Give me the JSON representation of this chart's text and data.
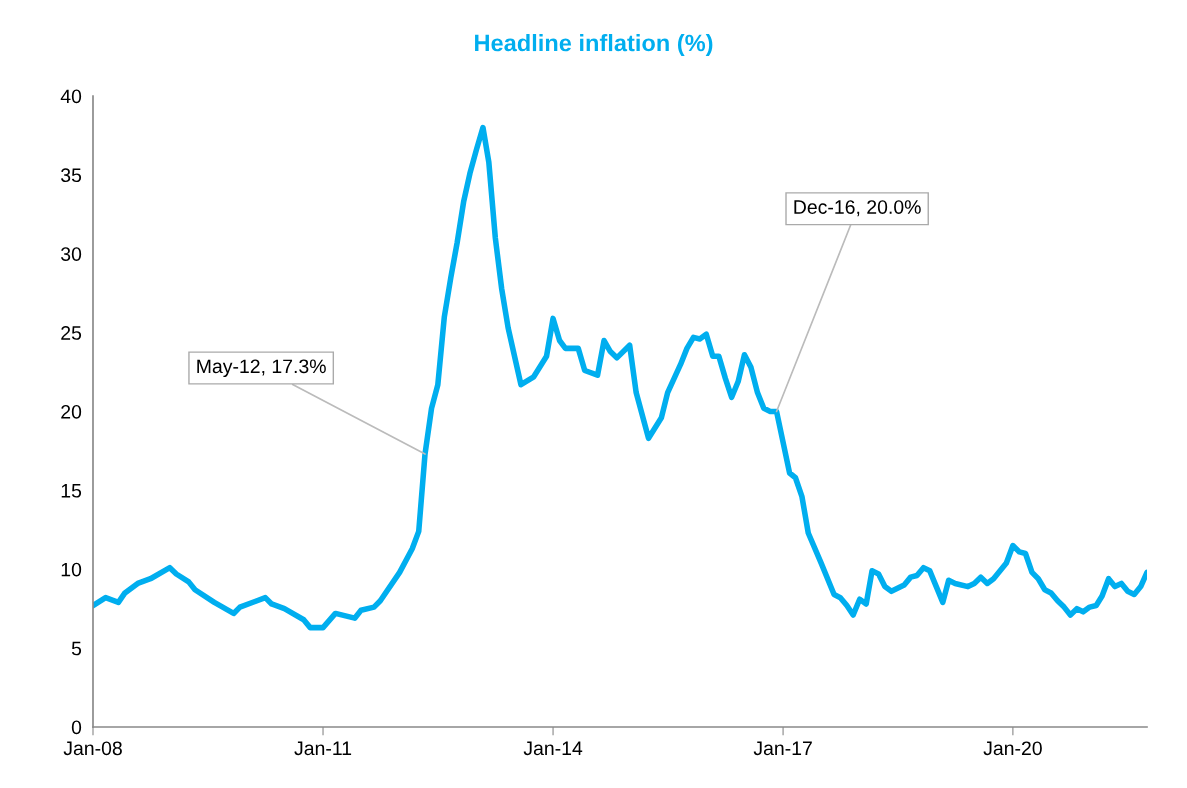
{
  "chart_data": {
    "type": "line",
    "title": "Headline inflation (%)",
    "x": [
      "2008-01",
      "2008-03",
      "2008-05",
      "2008-06",
      "2008-08",
      "2008-10",
      "2009-01",
      "2009-02",
      "2009-04",
      "2009-05",
      "2009-08",
      "2009-11",
      "2009-12",
      "2010-04",
      "2010-05",
      "2010-07",
      "2010-10",
      "2010-11",
      "2011-01",
      "2011-03",
      "2011-06",
      "2011-07",
      "2011-09",
      "2011-10",
      "2012-01",
      "2012-03",
      "2012-04",
      "2012-05",
      "2012-06",
      "2012-07",
      "2012-08",
      "2012-09",
      "2012-10",
      "2012-11",
      "2012-12",
      "2013-01",
      "2013-02",
      "2013-03",
      "2013-04",
      "2013-05",
      "2013-06",
      "2013-08",
      "2013-10",
      "2013-12",
      "2014-01",
      "2014-02",
      "2014-03",
      "2014-05",
      "2014-06",
      "2014-08",
      "2014-09",
      "2014-10",
      "2014-11",
      "2015-01",
      "2015-02",
      "2015-04",
      "2015-06",
      "2015-07",
      "2015-09",
      "2015-10",
      "2015-11",
      "2015-12",
      "2016-01",
      "2016-02",
      "2016-03",
      "2016-04",
      "2016-05",
      "2016-06",
      "2016-07",
      "2016-08",
      "2016-09",
      "2016-10",
      "2016-11",
      "2016-12",
      "2017-02",
      "2017-03",
      "2017-04",
      "2017-05",
      "2017-07",
      "2017-09",
      "2017-10",
      "2017-11",
      "2017-12",
      "2018-01",
      "2018-02",
      "2018-03",
      "2018-04",
      "2018-05",
      "2018-06",
      "2018-08",
      "2018-09",
      "2018-10",
      "2018-11",
      "2018-12",
      "2019-01",
      "2019-02",
      "2019-03",
      "2019-04",
      "2019-06",
      "2019-07",
      "2019-08",
      "2019-09",
      "2019-10",
      "2019-11",
      "2019-12",
      "2020-01",
      "2020-02",
      "2020-03",
      "2020-04",
      "2020-05",
      "2020-06",
      "2020-07",
      "2020-08",
      "2020-09",
      "2020-10",
      "2020-11",
      "2020-12",
      "2021-01",
      "2021-02",
      "2021-03",
      "2021-04",
      "2021-05",
      "2021-06",
      "2021-07",
      "2021-08",
      "2021-09",
      "2021-10"
    ],
    "series": [
      {
        "color": "#00aeef",
        "values": [
          7.7,
          8.2,
          7.9,
          8.5,
          9.1,
          9.4,
          10.1,
          9.7,
          9.2,
          8.7,
          7.9,
          7.2,
          7.6,
          8.2,
          7.8,
          7.5,
          6.8,
          6.3,
          6.3,
          7.2,
          6.9,
          7.4,
          7.6,
          8.0,
          9.8,
          11.3,
          12.4,
          17.3,
          20.2,
          21.7,
          26.0,
          28.5,
          30.7,
          33.3,
          35.1,
          36.6,
          38.0,
          35.8,
          31.0,
          27.8,
          25.3,
          21.7,
          22.2,
          23.5,
          25.9,
          24.5,
          24.0,
          24.0,
          22.6,
          22.3,
          24.5,
          23.8,
          23.4,
          24.2,
          21.2,
          18.3,
          19.6,
          21.2,
          23.0,
          24.0,
          24.7,
          24.6,
          24.9,
          23.5,
          23.5,
          22.1,
          20.9,
          21.9,
          23.6,
          22.8,
          21.2,
          20.2,
          20.0,
          20.0,
          16.1,
          15.8,
          14.6,
          12.3,
          10.4,
          8.4,
          8.2,
          7.7,
          7.1,
          8.1,
          7.8,
          9.9,
          9.7,
          8.9,
          8.6,
          9.0,
          9.5,
          9.6,
          10.1,
          9.9,
          8.9,
          7.9,
          9.3,
          9.1,
          8.9,
          9.1,
          9.5,
          9.1,
          9.4,
          9.9,
          10.4,
          11.5,
          11.1,
          11.0,
          9.8,
          9.4,
          8.7,
          8.5,
          8.0,
          7.6,
          7.1,
          7.5,
          7.3,
          7.6,
          7.7,
          8.3,
          9.4,
          8.9,
          9.1,
          8.6,
          8.4,
          8.9,
          9.8
        ]
      }
    ],
    "xlim": [
      "2008-01",
      "2021-10"
    ],
    "xticks": [
      {
        "value": "2008-01",
        "label": "Jan-08"
      },
      {
        "value": "2011-01",
        "label": "Jan-11"
      },
      {
        "value": "2014-01",
        "label": "Jan-14"
      },
      {
        "value": "2017-01",
        "label": "Jan-17"
      },
      {
        "value": "2020-01",
        "label": "Jan-20"
      }
    ],
    "ylim": [
      0,
      40
    ],
    "yticks": [
      0,
      5,
      10,
      15,
      20,
      25,
      30,
      35,
      40
    ],
    "grid": false,
    "marker": "none",
    "line_style": "solid",
    "annotations": [
      {
        "text": "May-12, 17.3%",
        "x": "2012-05",
        "y": 17.3
      },
      {
        "text": "Dec-16, 20.0%",
        "x": "2016-12",
        "y": 20.0
      }
    ]
  }
}
